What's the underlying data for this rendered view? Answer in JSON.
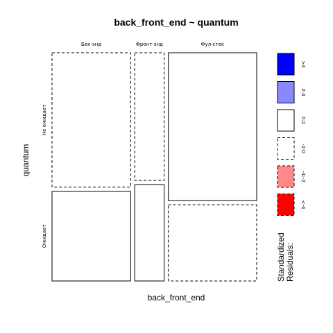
{
  "chart_data": {
    "type": "mosaic",
    "title": "back_front_end ~ quantum",
    "xlabel": "back_front_end",
    "ylabel": "quantum",
    "x_categories": [
      "Бек-энд",
      "Фронт-энд",
      "Фул-стек"
    ],
    "y_categories": [
      "Не ожидает",
      "Ожидает"
    ],
    "column_proportions": [
      0.4,
      0.15,
      0.45
    ],
    "cells": [
      {
        "x": "Бек-энд",
        "y": "Не ожидает",
        "proportion": 0.6,
        "residual_class": "-2:0"
      },
      {
        "x": "Бек-энд",
        "y": "Ожидает",
        "proportion": 0.4,
        "residual_class": "0:2"
      },
      {
        "x": "Фронт-энд",
        "y": "Не ожидает",
        "proportion": 0.57,
        "residual_class": "-2:0"
      },
      {
        "x": "Фронт-энд",
        "y": "Ожидает",
        "proportion": 0.43,
        "residual_class": "0:2"
      },
      {
        "x": "Фул-стек",
        "y": "Не ожидает",
        "proportion": 0.66,
        "residual_class": "0:2"
      },
      {
        "x": "Фул-стек",
        "y": "Ожидает",
        "proportion": 0.34,
        "residual_class": "-2:0"
      }
    ],
    "legend": {
      "title_lines": [
        "Standardized",
        "Residuals:"
      ],
      "entries": [
        {
          "label": ">4",
          "fill": "#0000ff",
          "dashed": false
        },
        {
          "label": "2:4",
          "fill": "#8888ff",
          "dashed": false
        },
        {
          "label": "0:2",
          "fill": "#ffffff",
          "dashed": false
        },
        {
          "label": "-2:0",
          "fill": "#ffffff",
          "dashed": true
        },
        {
          "label": "-4:-2",
          "fill": "#ff8888",
          "dashed": true
        },
        {
          "label": "<-4",
          "fill": "#ff0000",
          "dashed": true
        }
      ]
    }
  }
}
